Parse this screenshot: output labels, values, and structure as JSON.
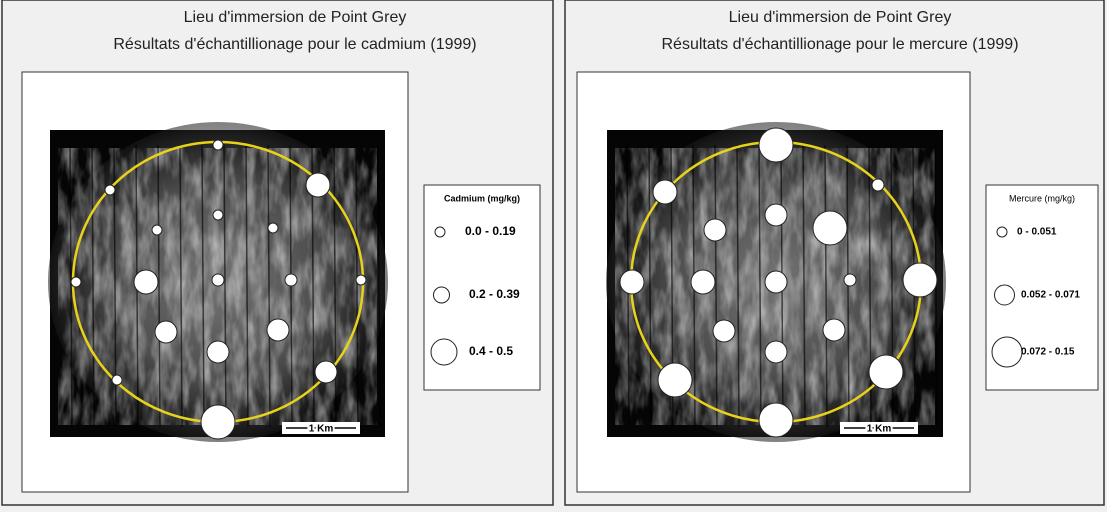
{
  "panels": [
    {
      "title": [
        "Lieu d'immersion de Point Grey",
        "Résultats d'échantillionage pour le cadmium (1999)"
      ],
      "legend": {
        "title": "Cadmium (mg/kg)",
        "items": [
          "0.0 - 0.19",
          "0.2 - 0.39",
          "0.4 - 0.5"
        ]
      },
      "scale_label": "1 Km"
    },
    {
      "title": [
        "Lieu d'immersion de Point Grey",
        "Résultats d'échantillionage pour le mercure (1999)"
      ],
      "legend": {
        "title": "Mercure (mg/kg)",
        "items": [
          "0 - 0.051",
          "0.052 - 0.071",
          "0.072 - 0.15"
        ]
      },
      "scale_label": "1 Km"
    }
  ]
}
